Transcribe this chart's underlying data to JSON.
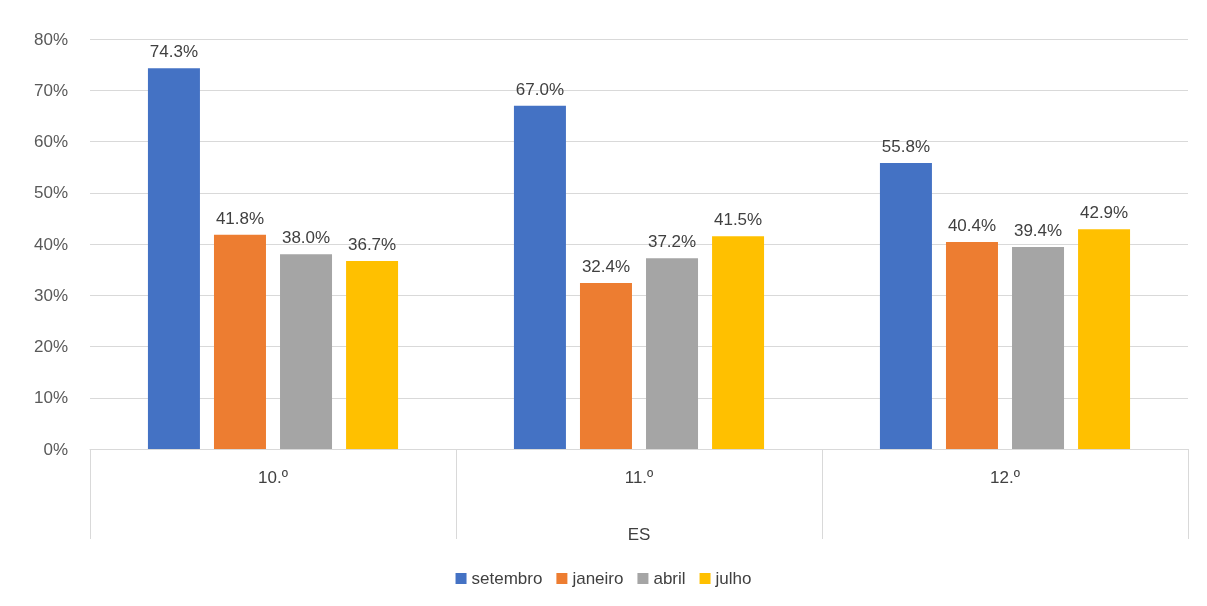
{
  "chart_data": {
    "type": "bar",
    "xlabel": "ES",
    "categories": [
      "10.º",
      "11.º",
      "12.º"
    ],
    "series": [
      {
        "name": "setembro",
        "color": "#4472c4",
        "values": [
          74.3,
          67.0,
          55.8
        ],
        "value_labels": [
          "74.3%",
          "67.0%",
          "55.8%"
        ]
      },
      {
        "name": "janeiro",
        "color": "#ed7d31",
        "values": [
          41.8,
          32.4,
          40.4
        ],
        "value_labels": [
          "41.8%",
          "32.4%",
          "40.4%"
        ]
      },
      {
        "name": "abril",
        "color": "#a5a5a5",
        "values": [
          38.0,
          37.2,
          39.4
        ],
        "value_labels": [
          "38.0%",
          "37.2%",
          "39.4%"
        ]
      },
      {
        "name": "julho",
        "color": "#ffc000",
        "values": [
          36.7,
          41.5,
          42.9
        ],
        "value_labels": [
          "36.7%",
          "41.5%",
          "42.9%"
        ]
      }
    ],
    "ylim": [
      0,
      80
    ],
    "yticks": [
      {
        "value": 0,
        "label": "0%"
      },
      {
        "value": 10,
        "label": "10%"
      },
      {
        "value": 20,
        "label": "20%"
      },
      {
        "value": 30,
        "label": "30%"
      },
      {
        "value": 40,
        "label": "40%"
      },
      {
        "value": 50,
        "label": "50%"
      },
      {
        "value": 60,
        "label": "60%"
      },
      {
        "value": 70,
        "label": "70%"
      },
      {
        "value": 80,
        "label": "80%"
      }
    ],
    "grid": "y",
    "legend": "bottom"
  }
}
